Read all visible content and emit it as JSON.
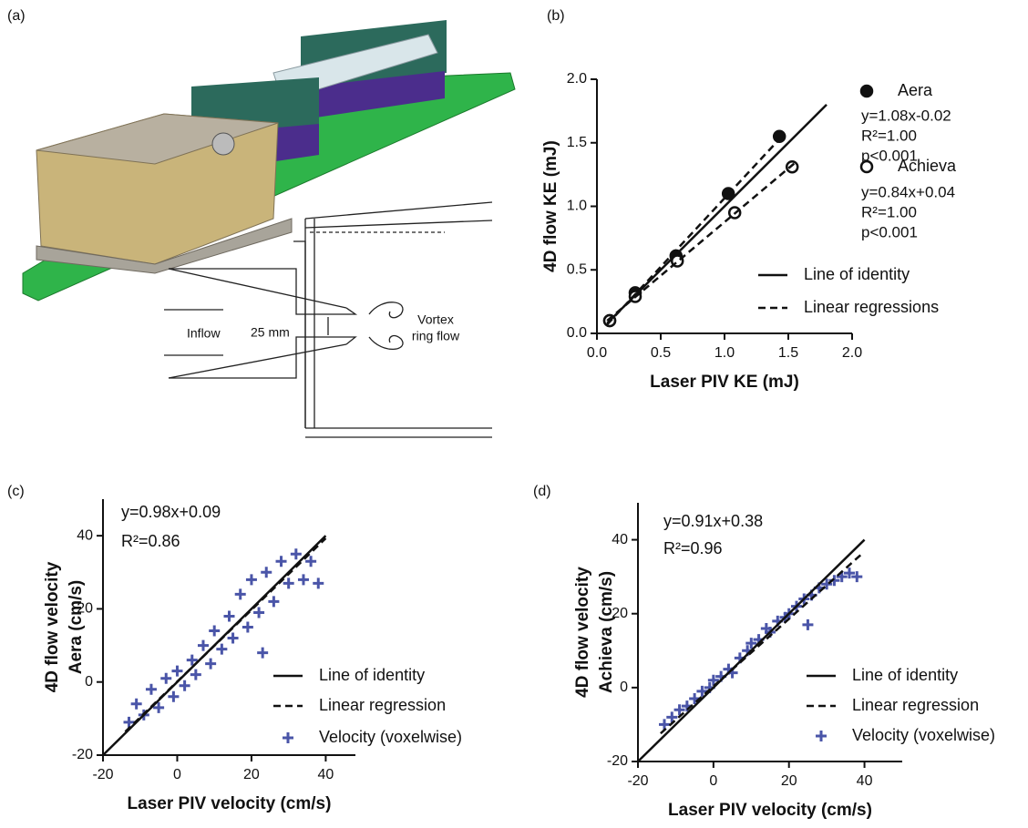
{
  "figure_a": {
    "label": "(a)",
    "inflow": "Inflow",
    "gap": "25 mm",
    "vortex": [
      "Vortex",
      "ring flow"
    ]
  },
  "chart_data": [
    {
      "type": "scatter",
      "panel_label": "(b)",
      "x_label": "Laser PIV KE (mJ)",
      "y_label": [
        "4D flow KE (mJ)"
      ],
      "xlim": [
        0,
        2
      ],
      "ylim": [
        0,
        2
      ],
      "xticks": [
        {
          "value": 0,
          "label": "0.0"
        },
        0.5,
        {
          "value": 1,
          "label": "1.0"
        },
        1.5,
        {
          "value": 2,
          "label": "2.0"
        }
      ],
      "yticks": [
        {
          "value": 0,
          "label": "0.0"
        },
        0.5,
        {
          "value": 1,
          "label": "1.0"
        },
        1.5,
        {
          "value": 2,
          "label": "2.0"
        }
      ],
      "series": [
        {
          "name": "Aera",
          "marker": "filled-circle",
          "color": "#111111",
          "x": [
            0.1,
            0.3,
            0.62,
            1.03,
            1.43
          ],
          "values": [
            0.1,
            0.32,
            0.61,
            1.1,
            1.55
          ],
          "annotation": [
            "y=1.08x-0.02",
            "R²=1.00",
            "p<0.001"
          ]
        },
        {
          "name": "Achieva",
          "marker": "open-circle",
          "color": "#111111",
          "x": [
            0.1,
            0.3,
            0.63,
            1.08,
            1.53
          ],
          "values": [
            0.1,
            0.29,
            0.57,
            0.95,
            1.31
          ],
          "annotation": [
            "y=0.84x+0.04",
            "R²=1.00",
            "p<0.001"
          ]
        },
        {
          "name": "Line of identity",
          "marker": "line",
          "style": "solid",
          "color": "#111111",
          "x": [
            0.08,
            1.8
          ],
          "values": [
            0.08,
            1.8
          ]
        },
        {
          "name": "Linear regressions",
          "marker": "line",
          "style": "dashed",
          "color": "#111111",
          "x": [
            0.08,
            1.45,
            null,
            0.08,
            1.55
          ],
          "values": [
            0.07,
            1.55,
            null,
            0.1,
            1.34
          ]
        }
      ]
    },
    {
      "type": "scatter",
      "panel_label": "(c)",
      "x_label": "Laser PIV velocity (cm/s)",
      "y_label": [
        "4D flow velocity",
        "Aera (cm/s)"
      ],
      "xlim": [
        -20,
        48
      ],
      "ylim": [
        -20,
        50
      ],
      "xticks": [
        -20,
        0,
        20,
        40
      ],
      "yticks": [
        -20,
        0,
        20,
        40
      ],
      "annotation": [
        "y=0.98x+0.09",
        "R²=0.86"
      ],
      "series": [
        {
          "name": "Line of identity",
          "marker": "line",
          "style": "solid",
          "color": "#111111",
          "x": [
            -20,
            40
          ],
          "values": [
            -20,
            40
          ]
        },
        {
          "name": "Linear regression",
          "marker": "line",
          "style": "dashed",
          "color": "#111111",
          "x": [
            -14,
            40
          ],
          "values": [
            -13.6,
            39.3
          ]
        },
        {
          "name": "Velocity (voxelwise)",
          "marker": "plus",
          "color": "#4a55a8",
          "x": [
            -13,
            -11,
            -9,
            -7,
            -5,
            -3,
            -1,
            0,
            2,
            4,
            5,
            7,
            9,
            10,
            12,
            14,
            15,
            17,
            19,
            20,
            22,
            24,
            26,
            28,
            30,
            32,
            34,
            36,
            38,
            23
          ],
          "values": [
            -11,
            -6,
            -9,
            -2,
            -7,
            1,
            -4,
            3,
            -1,
            6,
            2,
            10,
            5,
            14,
            9,
            18,
            12,
            24,
            15,
            28,
            19,
            30,
            22,
            33,
            27,
            35,
            28,
            33,
            27,
            8
          ]
        }
      ]
    },
    {
      "type": "scatter",
      "panel_label": "(d)",
      "x_label": "Laser PIV velocity (cm/s)",
      "y_label": [
        "4D flow velocity",
        "Achieva (cm/s)"
      ],
      "xlim": [
        -20,
        50
      ],
      "ylim": [
        -20,
        50
      ],
      "xticks": [
        -20,
        0,
        20,
        40
      ],
      "yticks": [
        -20,
        0,
        20,
        40
      ],
      "annotation": [
        "y=0.91x+0.38",
        "R²=0.96"
      ],
      "series": [
        {
          "name": "Line of identity",
          "marker": "line",
          "style": "solid",
          "color": "#111111",
          "x": [
            -20,
            40
          ],
          "values": [
            -20,
            40
          ]
        },
        {
          "name": "Linear regression",
          "marker": "line",
          "style": "dashed",
          "color": "#111111",
          "x": [
            -14,
            39
          ],
          "values": [
            -12.4,
            35.9
          ]
        },
        {
          "name": "Velocity (voxelwise)",
          "marker": "plus",
          "color": "#4a55a8",
          "x": [
            -13,
            -11,
            -9,
            -7,
            -5,
            -3,
            -1,
            0,
            2,
            4,
            5,
            7,
            9,
            10,
            12,
            14,
            15,
            17,
            19,
            20,
            22,
            24,
            26,
            28,
            30,
            32,
            34,
            36,
            38,
            25
          ],
          "values": [
            -10,
            -8,
            -6,
            -5,
            -3,
            -1,
            0,
            2,
            3,
            5,
            4,
            8,
            10,
            12,
            13,
            16,
            15,
            18,
            19,
            20,
            22,
            24,
            25,
            27,
            28,
            29,
            30,
            31,
            30,
            17
          ]
        }
      ]
    }
  ]
}
